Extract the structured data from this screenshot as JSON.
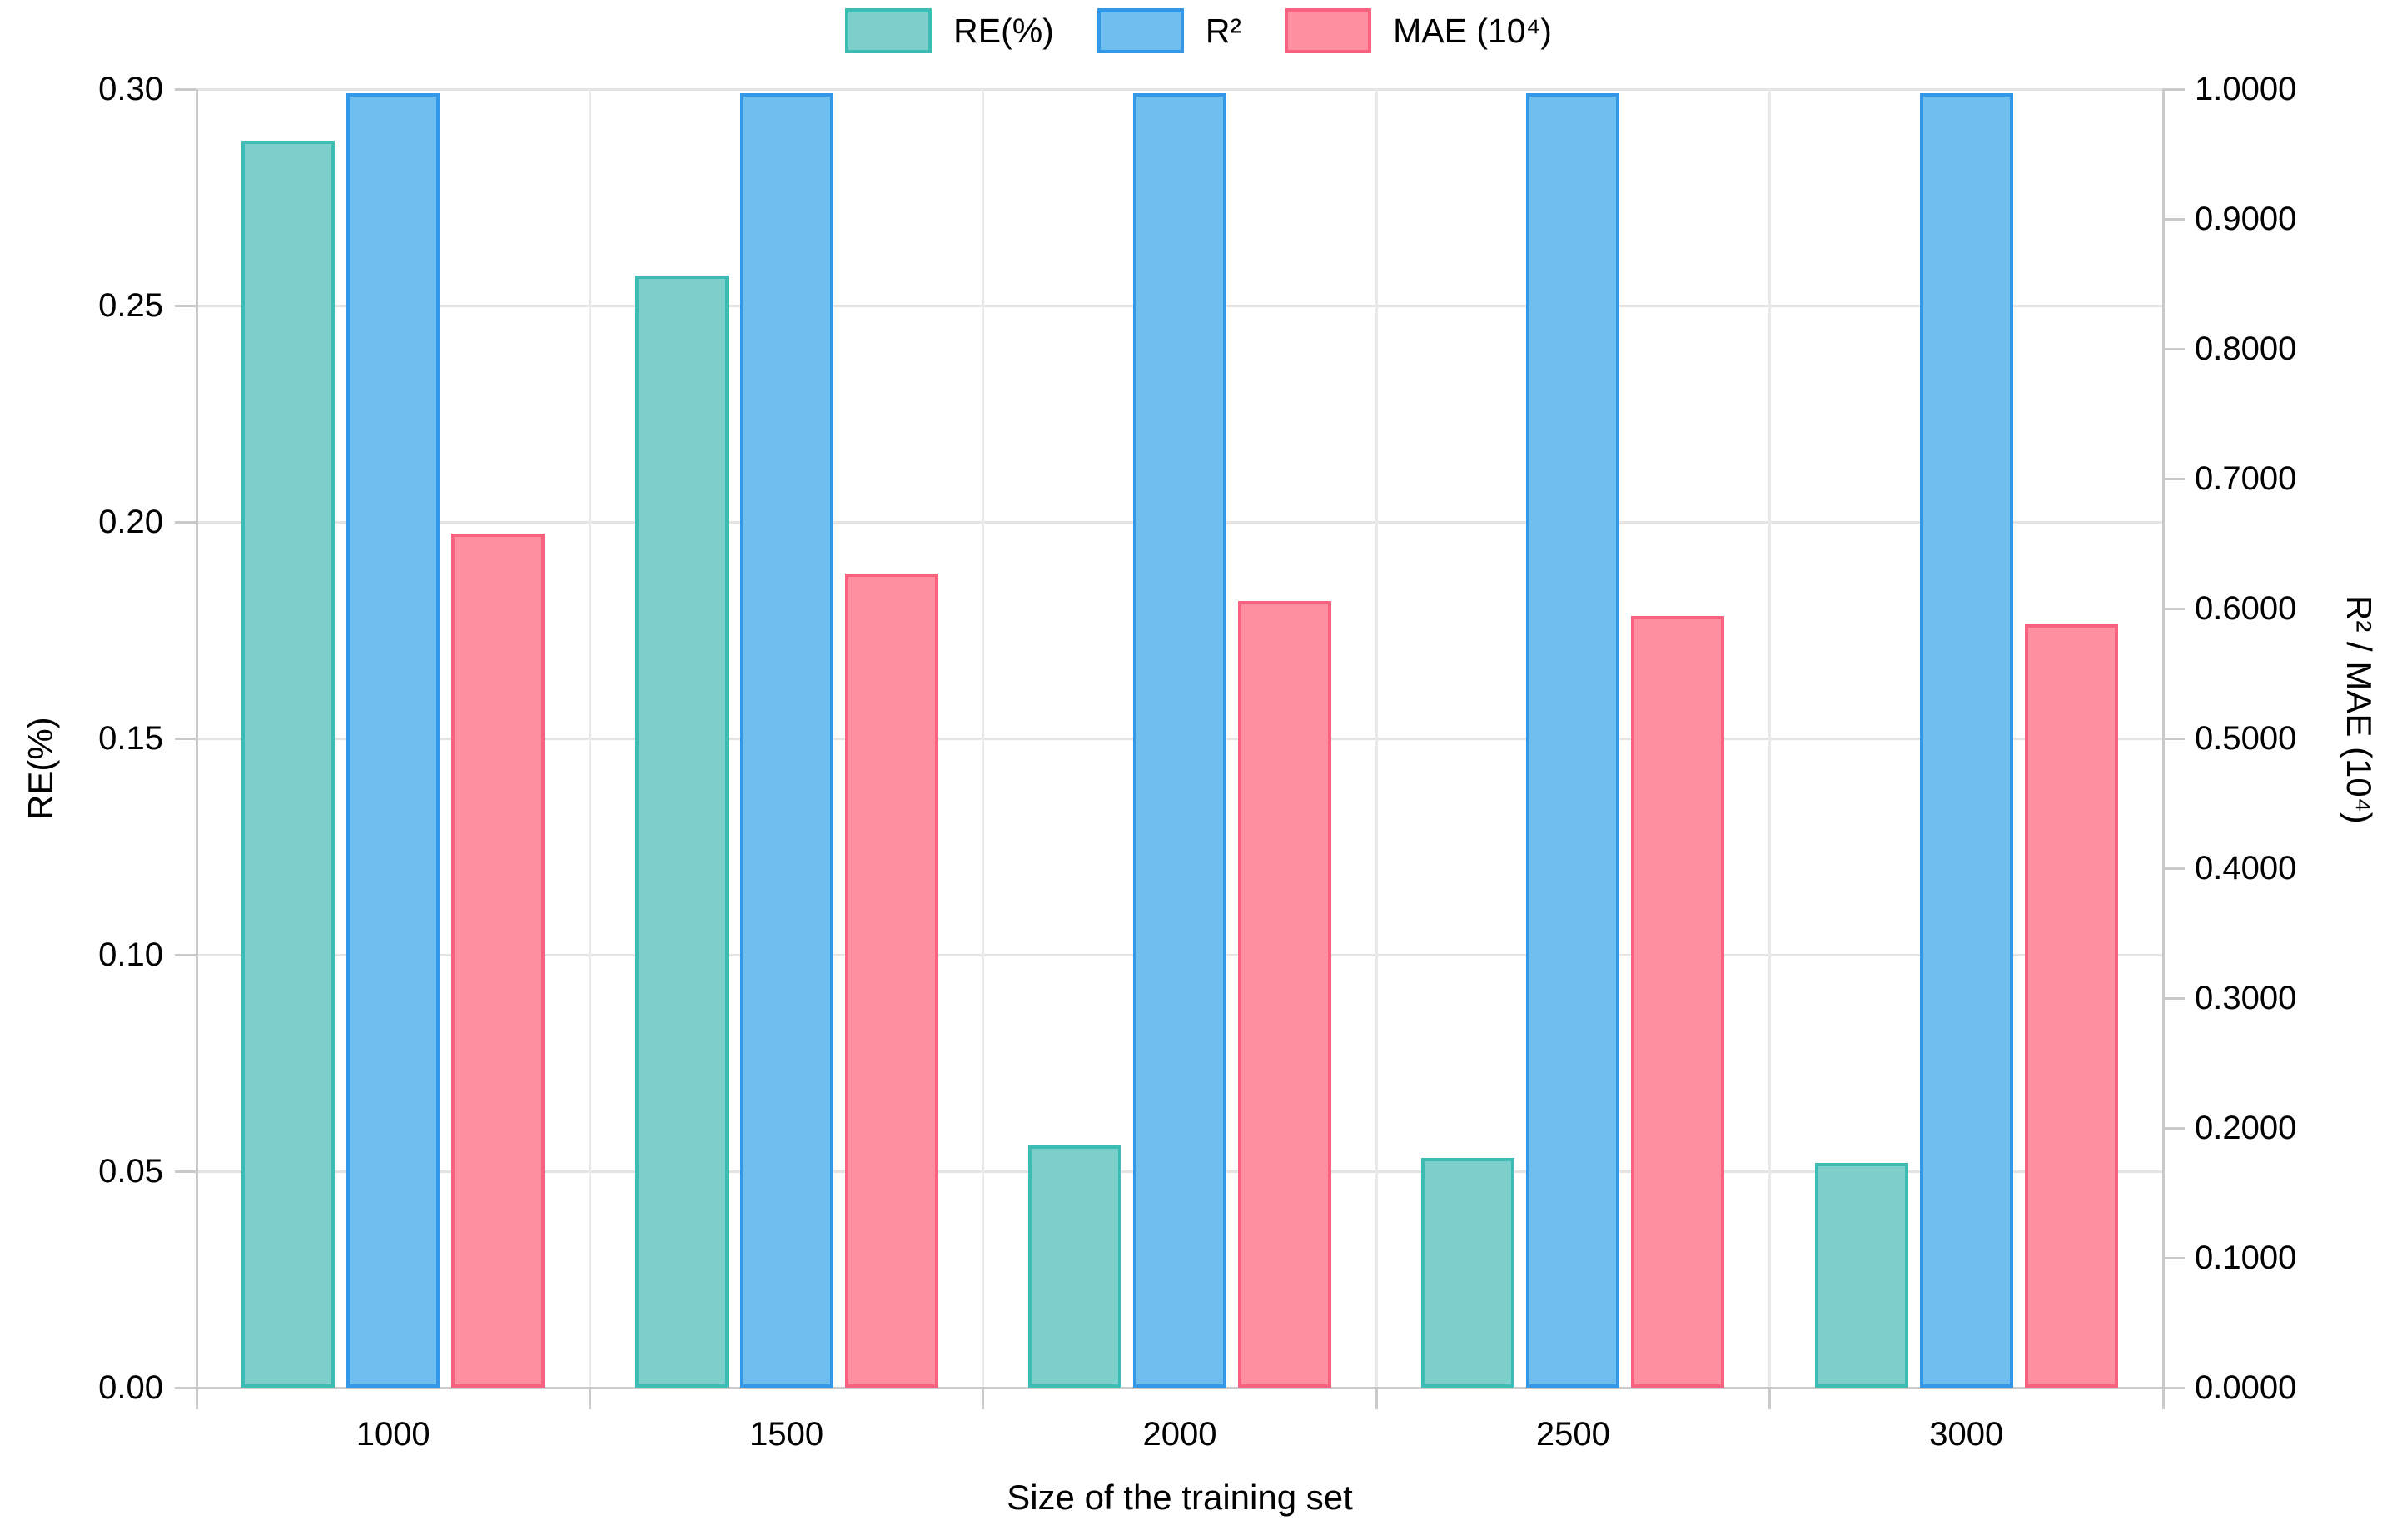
{
  "chart_data": {
    "type": "bar",
    "title": "",
    "categories": [
      "1000",
      "1500",
      "2000",
      "2500",
      "3000"
    ],
    "series": [
      {
        "name": "RE(%)",
        "axis": "left",
        "fill": "#7CCFCB",
        "border": "#3DBCB4",
        "values": [
          0.288,
          0.257,
          0.056,
          0.053,
          0.052
        ]
      },
      {
        "name": "R²",
        "axis": "right",
        "fill": "#6FBEF0",
        "border": "#3498E8",
        "values": [
          0.997,
          0.997,
          0.997,
          0.997,
          0.997
        ]
      },
      {
        "name": "MAE (10⁴)",
        "axis": "right",
        "fill": "#FE8FA0",
        "border": "#F9627F",
        "values": [
          0.658,
          0.627,
          0.606,
          0.594,
          0.588
        ]
      }
    ],
    "xlabel": "Size of the training set",
    "ylabel_left": "RE(%)",
    "ylabel_right": "R² / MAE (10⁴)",
    "ylim_left": [
      0,
      0.3
    ],
    "ylim_right": [
      0,
      1.0
    ],
    "yticks_left": [
      "0.30",
      "0.25",
      "0.20",
      "0.15",
      "0.10",
      "0.05",
      "0.00"
    ],
    "yticks_right": [
      "1.0000",
      "0.9000",
      "0.8000",
      "0.7000",
      "0.6000",
      "0.5000",
      "0.4000",
      "0.3000",
      "0.2000",
      "0.1000",
      "0.0000"
    ],
    "grid": true,
    "legend_position": "top"
  },
  "colors": {
    "grid": "#e4e4e4",
    "axis": "#c9c9c9",
    "background": "#ffffff",
    "text": "#000000"
  }
}
